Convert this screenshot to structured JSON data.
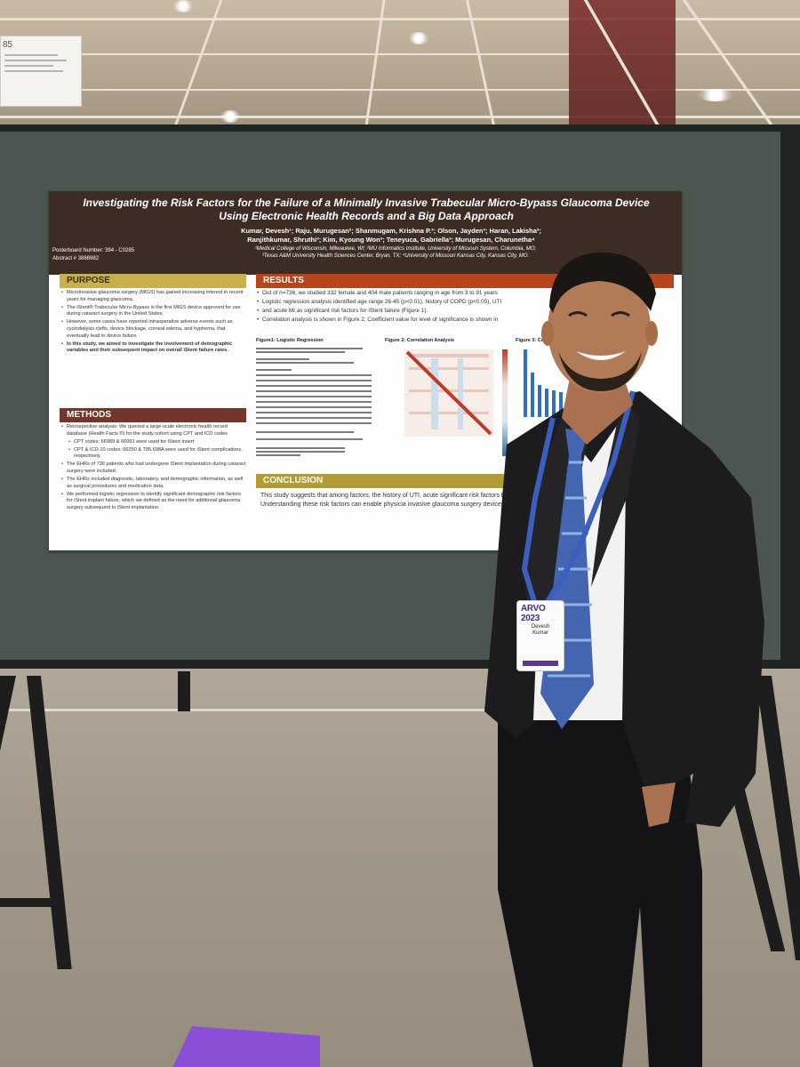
{
  "poster": {
    "title_line1": "Investigating the Risk Factors for the Failure of a Minimally Invasive Trabecular Micro-Bypass Glaucoma Device",
    "title_line2": "Using Electronic Health Records and a Big Data Approach",
    "authors_line1": "Kumar, Devesh¹; Raju, Murugesan²; Shanmugam, Krishna P.³; Olson, Jayden³; Haran, Lakisha³;",
    "authors_line2": "Ranjithkumar, Shruthi³; Kim, Kyoung Won³; Teneyuca, Gabriella³; Murugesan, Charunetha⁴",
    "affiliation_line1": "¹Medical College of Wisconsin, Milwaukee, WI; ²MU Informatics Institute, University of Missouri System, Columbia, MO;",
    "affiliation_line2": "³Texas A&M University Health Sciences Center, Bryan, TX; ⁴University of Missouri Kansas City, Kansas City, MO.",
    "posterboard": "Posterboard Number: 394 - C0285",
    "abstract": "Abstract # 3886982",
    "purpose": {
      "heading": "PURPOSE",
      "bullets": [
        "Microinvasive glaucoma surgery (MIGS) has gained increasing interest in recent years for managing glaucoma.",
        "The iStent® Trabecular Micro-Bypass is the first MIGS device approved for use during cataract surgery in the United States.",
        "However, some cases have reported intraoperative adverse events such as cyclodialysis clefts, device blockage, corneal edema, and hyphema, that eventually lead to device failure.",
        "In this study, we aimed to investigate the involvement of demographic variables and their subsequent impact on overall iStent failure rates."
      ]
    },
    "methods": {
      "heading": "METHODS",
      "bullets": [
        "Retrospective analysis: We queried a large-scale electronic health record database (Health Facts ®) for the study cohort using CPT and ICD codes",
        "CPT codes: 66989 & 66991 were used for iStent insert",
        "CPT & ICD-10 codes: 66250 & T85.698A were used for iStent complications, respectively.",
        "The EHRs of 736 patients who had undergone iStent implantation during cataract surgery were included.",
        "The EHRs included diagnostic, laboratory, and demographic information, as well as surgical procedures and medication data.",
        "We performed logistic regression to identify significant demographic risk factors for iStent implant failure, which we defined as the need for additional glaucoma surgery subsequent to iStent implantation."
      ]
    },
    "results": {
      "heading": "RESULTS",
      "bullets": [
        "Out of n=736, we studied 332 female and 404 male patients ranging in age from 3 to 91 years",
        "Logistic regression analysis identified age range 26-45 (p<0.01), history of COPD (p<0.05), UTI",
        "and acute MI as significant risk factors for iStent failure (Figure 1).",
        "Correlation analysis is shown in Figure 2; Coefficient value for level of significance is shown in"
      ],
      "fig1": "Figure1: Logistic Regression",
      "fig2": "Figure 2: Correlation Analysis",
      "fig3": "Figure 3: Co"
    },
    "conclusion": {
      "heading": "CONCLUSION",
      "text": "This study suggests that among factors, the history of UTI, acute significant risk factors for iStent implant failure. Interestingly, ag significant. Understanding these risk factors can enable physicia invasive glaucoma surgery devices to the demographic of their p surgery."
    }
  },
  "badge": {
    "logo": "ARVO 2023",
    "first_name": "Devesh",
    "last_name": "Kumar"
  },
  "sign": {
    "number": "85"
  },
  "colors": {
    "poster_header": "#3d2c24",
    "results_head": "#b7451c",
    "purpose_head": "#c9b04d",
    "methods_head": "#74352a",
    "conclusion_head": "#b29b32",
    "board": "#4b5650",
    "suit": "#1c1c1e",
    "tie": "#4466b0",
    "lanyard": "#3a5fbf"
  }
}
